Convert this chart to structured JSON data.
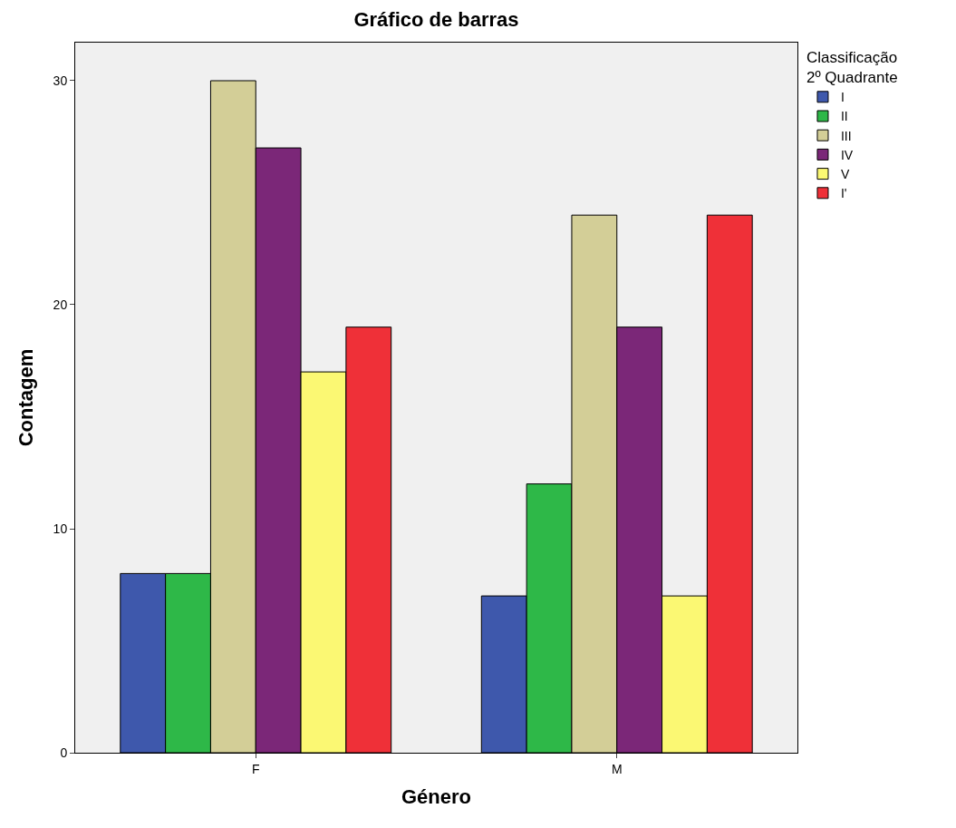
{
  "chart_data": {
    "type": "bar",
    "title": "Gráfico de barras",
    "xlabel": "Género",
    "ylabel": "Contagem",
    "legend_title": "Classificação\n2º Quadrante",
    "categories": [
      "F",
      "M"
    ],
    "series": [
      {
        "name": "I",
        "color": "#3e58ac",
        "values": [
          8,
          7
        ]
      },
      {
        "name": "II",
        "color": "#2eb848",
        "values": [
          8,
          12
        ]
      },
      {
        "name": "III",
        "color": "#d3ce97",
        "values": [
          30,
          24
        ]
      },
      {
        "name": "IV",
        "color": "#7b2778",
        "values": [
          27,
          19
        ]
      },
      {
        "name": "V",
        "color": "#fbf873",
        "values": [
          17,
          7
        ]
      },
      {
        "name": "I'",
        "color": "#ef3038",
        "values": [
          19,
          24
        ]
      }
    ],
    "ylim": [
      0,
      31.7
    ],
    "yticks": [
      0,
      10,
      20,
      30
    ],
    "grid": false,
    "legend": "top right"
  }
}
